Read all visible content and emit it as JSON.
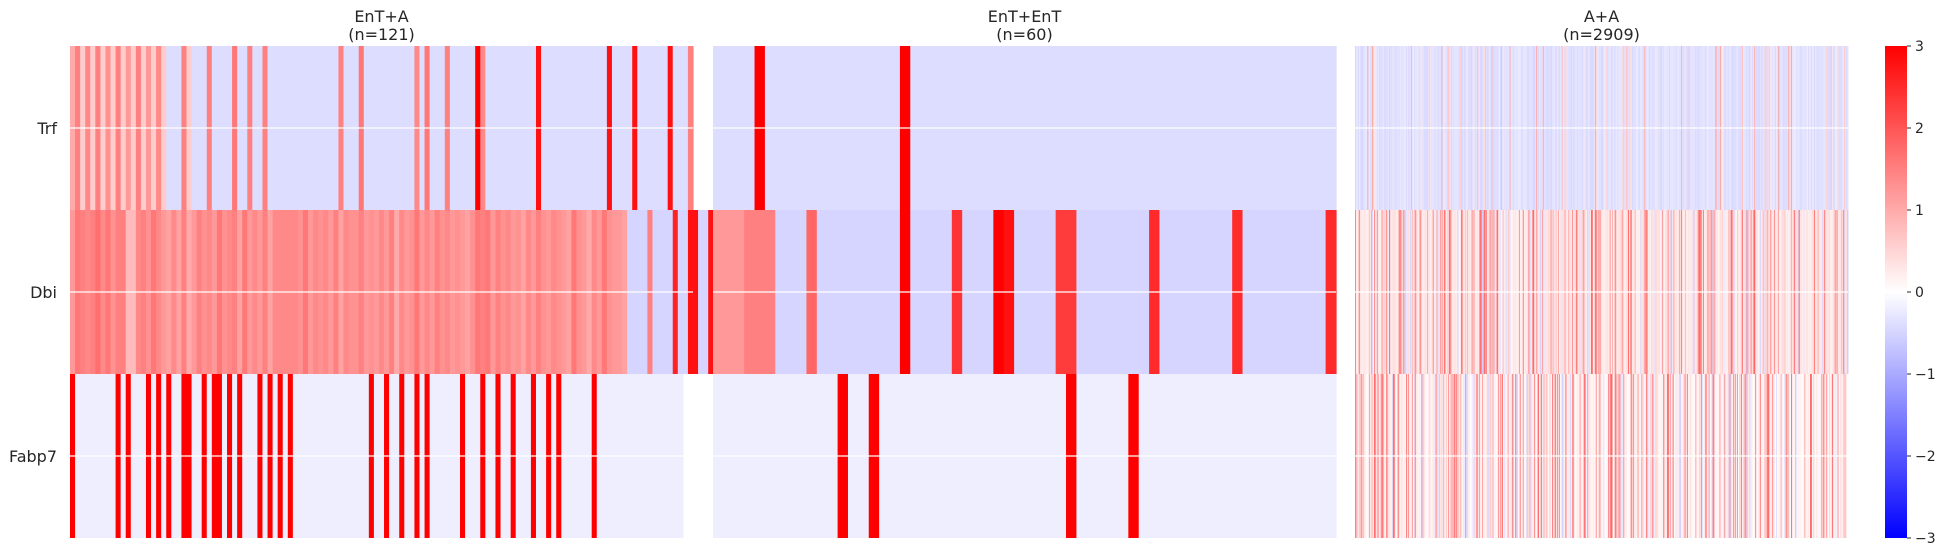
{
  "chart_data": {
    "type": "heatmap",
    "rows": [
      "Trf",
      "Dbi",
      "Fabp7"
    ],
    "panels": [
      {
        "title_line1": "EnT+A",
        "title_line2": "(n=121)",
        "n": 121,
        "values": [
          [
            1.0,
            1.5,
            0.6,
            1.4,
            0.6,
            1.5,
            0.6,
            1.3,
            0.6,
            1.5,
            0.6,
            1.2,
            0.6,
            1.5,
            0.6,
            1.2,
            0.6,
            1.4,
            0.6,
            -0.4,
            -0.4,
            -0.4,
            1.5,
            0.6,
            -0.4,
            -0.4,
            -0.4,
            1.5,
            -0.4,
            -0.4,
            -0.4,
            -0.4,
            1.6,
            -0.4,
            -0.4,
            1.5,
            -0.4,
            -0.4,
            1.5,
            -0.4,
            -0.4,
            -0.4,
            -0.4,
            -0.4,
            -0.4,
            -0.4,
            -0.4,
            -0.4,
            -0.4,
            -0.4,
            -0.4,
            -0.4,
            -0.4,
            1.5,
            -0.4,
            -0.4,
            -0.4,
            1.6,
            -0.4,
            -0.4,
            -0.4,
            -0.4,
            -0.4,
            -0.4,
            -0.4,
            -0.4,
            -0.4,
            -0.4,
            1.4,
            -0.4,
            1.6,
            -0.4,
            -0.4,
            -0.4,
            1.5,
            -0.4,
            -0.4,
            -0.4,
            -0.4,
            -0.4,
            3.0,
            1.4,
            -0.4,
            -0.4,
            -0.4,
            -0.4,
            -0.4,
            -0.4,
            -0.4,
            -0.4,
            -0.4,
            -0.4,
            2.8,
            -0.4,
            -0.4,
            -0.4,
            -0.4,
            -0.4,
            -0.4,
            -0.4,
            -0.4,
            -0.4,
            -0.4,
            -0.4,
            -0.4,
            -0.4,
            2.8,
            -0.4,
            -0.4,
            -0.4,
            -0.4,
            2.8,
            -0.4,
            -0.4,
            -0.4,
            -0.4,
            -0.4,
            -0.4,
            2.8,
            -0.4,
            -0.4,
            -0.4,
            1.5
          ],
          [
            1.2,
            1.6,
            1.5,
            1.4,
            1.5,
            1.7,
            1.4,
            1.6,
            1.3,
            1.5,
            1.5,
            0.8,
            0.8,
            1.4,
            1.5,
            1.3,
            1.6,
            1.4,
            1.2,
            1.1,
            1.4,
            1.1,
            1.5,
            1.0,
            1.2,
            1.5,
            1.3,
            1.4,
            1.2,
            1.6,
            1.3,
            1.4,
            1.5,
            1.1,
            1.6,
            1.2,
            1.4,
            1.2,
            1.5,
            1.1,
            1.4,
            1.4,
            1.4,
            1.4,
            1.4,
            1.3,
            1.6,
            1.2,
            1.4,
            1.3,
            1.4,
            1.2,
            1.5,
            1.1,
            1.4,
            1.3,
            1.3,
            1.5,
            1.2,
            1.3,
            1.2,
            1.4,
            1.2,
            1.5,
            1.0,
            1.4,
            1.2,
            1.3,
            1.6,
            1.2,
            1.4,
            1.2,
            1.5,
            1.3,
            1.4,
            1.2,
            1.3,
            1.2,
            1.1,
            1.3,
            1.6,
            1.5,
            1.6,
            1.2,
            1.5,
            1.3,
            1.4,
            1.2,
            1.3,
            1.1,
            1.4,
            1.2,
            1.5,
            1.3,
            1.2,
            1.4,
            1.3,
            1.2,
            1.1,
            1.6,
            1.3,
            1.2,
            1.0,
            1.4,
            1.2,
            1.6,
            1.3,
            1.2,
            1.2,
            1.1,
            -0.5,
            -0.5,
            -0.5,
            -0.5,
            1.5,
            -0.5,
            -0.5,
            -0.5,
            -0.5,
            2.6,
            -0.5,
            -0.5,
            2.8,
            2.8,
            -0.5,
            -0.5,
            2.8
          ],
          [
            3.0,
            -0.2,
            -0.2,
            -0.2,
            -0.2,
            -0.2,
            -0.2,
            -0.2,
            -0.2,
            3.0,
            -0.2,
            3.0,
            -0.2,
            -0.2,
            -0.2,
            3.0,
            -0.2,
            3.0,
            -0.2,
            3.0,
            -0.2,
            -0.2,
            3.0,
            3.0,
            -0.2,
            -0.2,
            3.0,
            -0.2,
            3.0,
            3.0,
            -0.2,
            3.0,
            -0.2,
            3.0,
            -0.2,
            -0.2,
            -0.2,
            3.0,
            -0.2,
            3.0,
            -0.2,
            3.0,
            -0.2,
            3.0,
            -0.2,
            -0.2,
            -0.2,
            -0.2,
            -0.2,
            -0.2,
            -0.2,
            -0.2,
            -0.2,
            -0.2,
            -0.2,
            -0.2,
            -0.2,
            -0.2,
            -0.2,
            3.0,
            -0.2,
            -0.2,
            3.0,
            -0.2,
            -0.2,
            3.0,
            -0.2,
            -0.2,
            3.0,
            -0.2,
            3.0,
            -0.2,
            -0.2,
            -0.2,
            -0.2,
            -0.2,
            -0.2,
            3.0,
            -0.2,
            -0.2,
            -0.2,
            3.0,
            -0.2,
            -0.2,
            3.0,
            -0.2,
            -0.2,
            3.0,
            -0.2,
            -0.2,
            -0.2,
            3.0,
            -0.2,
            -0.2,
            3.0,
            -0.2,
            3.0,
            -0.2,
            -0.2,
            -0.2,
            -0.2,
            -0.2,
            -0.2,
            3.0,
            -0.2,
            -0.2,
            -0.2,
            -0.2,
            -0.2,
            -0.2,
            -0.2,
            -0.2,
            -0.2,
            -0.2,
            -0.2,
            -0.2,
            -0.2,
            -0.2,
            -0.2,
            -0.2,
            -0.2
          ]
        ]
      },
      {
        "title_line1": "EnT+EnT",
        "title_line2": "(n=60)",
        "n": 60,
        "values": [
          [
            -0.4,
            -0.4,
            -0.4,
            -0.4,
            3.0,
            -0.4,
            -0.4,
            -0.4,
            -0.4,
            -0.4,
            -0.4,
            -0.4,
            -0.4,
            -0.4,
            -0.4,
            -0.4,
            -0.4,
            -0.4,
            3.0,
            -0.4,
            -0.4,
            -0.4,
            -0.4,
            -0.4,
            -0.4,
            -0.4,
            -0.4,
            -0.4,
            -0.4,
            -0.4,
            -0.4,
            -0.4,
            -0.4,
            -0.4,
            -0.4,
            -0.4,
            -0.4,
            -0.4,
            -0.4,
            -0.4,
            -0.4,
            -0.4,
            -0.4,
            -0.4,
            -0.4,
            -0.4,
            -0.4,
            -0.4,
            -0.4,
            -0.4,
            -0.4,
            -0.4,
            -0.4,
            -0.4,
            -0.4,
            -0.4,
            -0.4,
            -0.4,
            -0.4,
            -0.4
          ],
          [
            1.2,
            1.2,
            1.2,
            1.5,
            1.5,
            1.5,
            -0.5,
            -0.5,
            -0.5,
            1.8,
            -0.5,
            -0.5,
            -0.5,
            -0.5,
            -0.5,
            -0.5,
            -0.5,
            -0.5,
            3.0,
            -0.5,
            -0.5,
            -0.5,
            -0.5,
            2.4,
            -0.5,
            -0.5,
            -0.5,
            3.0,
            2.8,
            -0.5,
            -0.5,
            -0.5,
            -0.5,
            2.3,
            2.3,
            -0.5,
            -0.5,
            -0.5,
            -0.5,
            -0.5,
            -0.5,
            -0.5,
            2.5,
            -0.5,
            -0.5,
            -0.5,
            -0.5,
            -0.5,
            -0.5,
            -0.5,
            2.5,
            -0.5,
            -0.5,
            -0.5,
            -0.5,
            -0.5,
            -0.5,
            -0.5,
            -0.5,
            2.5
          ],
          [
            -0.2,
            -0.2,
            -0.2,
            -0.2,
            -0.2,
            -0.2,
            -0.2,
            -0.2,
            -0.2,
            -0.2,
            -0.2,
            -0.2,
            3.0,
            -0.2,
            -0.2,
            3.0,
            -0.2,
            -0.2,
            -0.2,
            -0.2,
            -0.2,
            -0.2,
            -0.2,
            -0.2,
            -0.2,
            -0.2,
            -0.2,
            -0.2,
            -0.2,
            -0.2,
            -0.2,
            -0.2,
            -0.2,
            -0.2,
            3.0,
            -0.2,
            -0.2,
            -0.2,
            -0.2,
            -0.2,
            3.0,
            -0.2,
            -0.2,
            -0.2,
            -0.2,
            -0.2,
            -0.2,
            -0.2,
            -0.2,
            -0.2,
            -0.2,
            -0.2,
            -0.2,
            -0.2,
            -0.2,
            -0.2,
            -0.2,
            -0.2,
            -0.2,
            -0.2
          ]
        ]
      },
      {
        "title_line1": "A+A",
        "title_line2": "(n=2909)",
        "n": 2909,
        "pattern": "Values mostly near zero: Trf slightly negative with sparse faint red stripes; Dbi and Fabp7 weakly positive with many thin red stripes across the panel."
      }
    ],
    "colorbar": {
      "ticks": [
        "3",
        "2",
        "1",
        "0",
        "−1",
        "−2",
        "−3"
      ],
      "tick_values": [
        3,
        2,
        1,
        0,
        -1,
        -2,
        -3
      ],
      "vmin": -3,
      "vmax": 3
    },
    "colormap": {
      "low": "#0000ff",
      "mid": "#ffffff",
      "high": "#ff0000"
    },
    "grid": true
  }
}
